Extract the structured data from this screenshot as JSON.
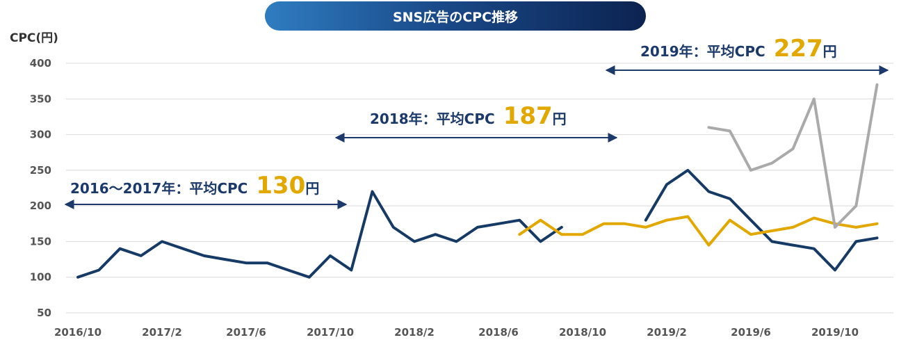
{
  "chart_data": {
    "type": "line",
    "title": "SNS広告のCPC推移",
    "ylabel": "CPC(円)",
    "xlabel": "",
    "ylim": [
      50,
      400
    ],
    "y_ticks": [
      "400",
      "350",
      "300",
      "250",
      "200",
      "150",
      "100",
      "50"
    ],
    "x_ticks": [
      "2016/10",
      "2017/2",
      "2017/6",
      "2017/10",
      "2018/2",
      "2018/6",
      "2018/10",
      "2019/2",
      "2019/6",
      "2019/10"
    ],
    "grid": true,
    "series": [
      {
        "color": "#163a66",
        "x": [
          "2016/10",
          "2016/11",
          "2016/12",
          "2017/1",
          "2017/2",
          "2017/3",
          "2017/4",
          "2017/5",
          "2017/6",
          "2017/7",
          "2017/8",
          "2017/9",
          "2017/10",
          "2017/11",
          "2017/12",
          "2018/1",
          "2018/2",
          "2018/3",
          "2018/4",
          "2018/5",
          "2018/6",
          "2018/7",
          "2018/8",
          "2018/9"
        ],
        "values": [
          100,
          110,
          140,
          130,
          150,
          140,
          130,
          125,
          120,
          120,
          110,
          100,
          130,
          110,
          220,
          170,
          150,
          160,
          150,
          170,
          175,
          180,
          150,
          170
        ]
      },
      {
        "color": "#163a66",
        "x": [
          "2019/1",
          "2019/2",
          "2019/3",
          "2019/4",
          "2019/5",
          "2019/6",
          "2019/7",
          "2019/8",
          "2019/9",
          "2019/10",
          "2019/11",
          "2019/12"
        ],
        "values": [
          180,
          230,
          250,
          220,
          210,
          180,
          150,
          145,
          140,
          110,
          150,
          155
        ]
      },
      {
        "color": "#e2a800",
        "x": [
          "2018/7",
          "2018/8",
          "2018/9",
          "2018/10",
          "2018/11",
          "2018/12",
          "2019/1",
          "2019/2",
          "2019/3",
          "2019/4",
          "2019/5",
          "2019/6",
          "2019/7",
          "2019/8",
          "2019/9",
          "2019/10",
          "2019/11",
          "2019/12"
        ],
        "values": [
          160,
          180,
          160,
          160,
          175,
          175,
          170,
          180,
          185,
          145,
          180,
          160,
          165,
          170,
          183,
          175,
          170,
          175
        ]
      },
      {
        "color": "#aaaaaa",
        "x": [
          "2019/4",
          "2019/5",
          "2019/6",
          "2019/7",
          "2019/8",
          "2019/9",
          "2019/10",
          "2019/11",
          "2019/12"
        ],
        "values": [
          310,
          305,
          250,
          260,
          280,
          350,
          170,
          200,
          370
        ]
      }
    ],
    "annotations": [
      {
        "label": "2016〜2017年：平均CPC",
        "value": "130",
        "unit": "円",
        "from": "2016/10",
        "to": "2017/10"
      },
      {
        "label": "2018年：平均CPC",
        "value": "187",
        "unit": "円",
        "from": "2017/10",
        "to": "2018/10"
      },
      {
        "label": "2019年：平均CPC",
        "value": "227",
        "unit": "円",
        "from": "2018/10",
        "to": "2019/12"
      }
    ]
  }
}
